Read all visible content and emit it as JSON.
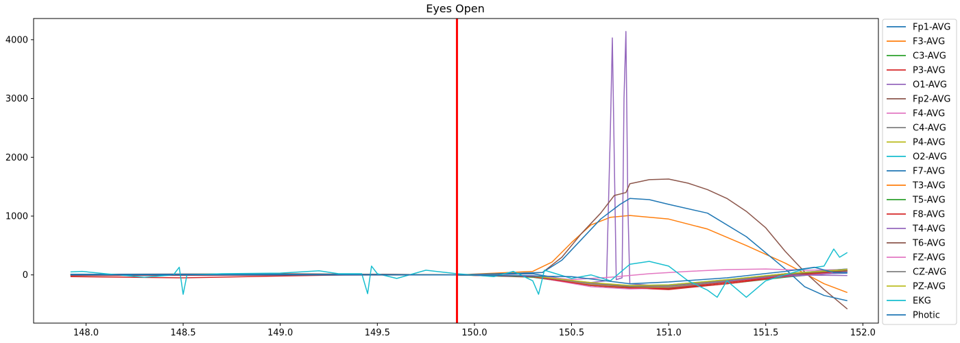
{
  "chart_data": {
    "type": "line",
    "title": "Eyes Open",
    "xlabel": "",
    "ylabel": "",
    "xlim": [
      147.73,
      152.08
    ],
    "ylim": [
      -820,
      4360
    ],
    "xticks": [
      148.0,
      148.5,
      149.0,
      149.5,
      150.0,
      150.5,
      151.0,
      151.5,
      152.0
    ],
    "xtick_labels": [
      "148.0",
      "148.5",
      "149.0",
      "149.5",
      "150.0",
      "150.5",
      "151.0",
      "151.5",
      "152.0"
    ],
    "yticks": [
      0,
      1000,
      2000,
      3000,
      4000
    ],
    "ytick_labels": [
      "0",
      "1000",
      "2000",
      "3000",
      "4000"
    ],
    "grid": false,
    "legend_position": "outside-right",
    "vline": {
      "x": 149.91,
      "color": "#ff0000"
    },
    "series": [
      {
        "name": "Fp1-AVG",
        "color": "#1f77b4",
        "points": [
          [
            147.92,
            10
          ],
          [
            148.5,
            -5
          ],
          [
            149.0,
            5
          ],
          [
            149.5,
            10
          ],
          [
            149.91,
            0
          ],
          [
            150.3,
            20
          ],
          [
            150.6,
            -150
          ],
          [
            150.8,
            -200
          ],
          [
            151.0,
            -220
          ],
          [
            151.3,
            -100
          ],
          [
            151.6,
            0
          ],
          [
            151.92,
            30
          ]
        ]
      },
      {
        "name": "F3-AVG",
        "color": "#ff7f0e",
        "points": [
          [
            147.92,
            0
          ],
          [
            149.0,
            10
          ],
          [
            149.91,
            0
          ],
          [
            150.3,
            60
          ],
          [
            150.4,
            220
          ],
          [
            150.5,
            550
          ],
          [
            150.6,
            850
          ],
          [
            150.7,
            980
          ],
          [
            150.8,
            1010
          ],
          [
            151.0,
            950
          ],
          [
            151.2,
            780
          ],
          [
            151.4,
            500
          ],
          [
            151.6,
            200
          ],
          [
            151.8,
            -150
          ],
          [
            151.92,
            -300
          ]
        ]
      },
      {
        "name": "C3-AVG",
        "color": "#2ca02c",
        "points": [
          [
            147.92,
            -10
          ],
          [
            149.0,
            0
          ],
          [
            149.91,
            0
          ],
          [
            150.3,
            -40
          ],
          [
            150.6,
            -180
          ],
          [
            150.8,
            -230
          ],
          [
            151.0,
            -240
          ],
          [
            151.3,
            -150
          ],
          [
            151.6,
            -40
          ],
          [
            151.92,
            60
          ]
        ]
      },
      {
        "name": "P3-AVG",
        "color": "#d62728",
        "points": [
          [
            147.92,
            -30
          ],
          [
            148.5,
            -50
          ],
          [
            149.0,
            -20
          ],
          [
            149.5,
            10
          ],
          [
            149.91,
            0
          ],
          [
            150.3,
            -30
          ],
          [
            150.6,
            -170
          ],
          [
            150.8,
            -220
          ],
          [
            151.0,
            -250
          ],
          [
            151.3,
            -150
          ],
          [
            151.6,
            -30
          ],
          [
            151.92,
            60
          ]
        ]
      },
      {
        "name": "O1-AVG",
        "color": "#9467bd",
        "points": [
          [
            147.92,
            0
          ],
          [
            149.91,
            0
          ],
          [
            150.3,
            -30
          ],
          [
            150.6,
            -130
          ],
          [
            150.68,
            -100
          ],
          [
            150.7,
            2500
          ],
          [
            150.71,
            4030
          ],
          [
            150.72,
            2000
          ],
          [
            150.73,
            -80
          ],
          [
            150.76,
            -50
          ],
          [
            150.77,
            3000
          ],
          [
            150.78,
            4140
          ],
          [
            150.79,
            1200
          ],
          [
            150.8,
            -150
          ],
          [
            151.0,
            -200
          ],
          [
            151.3,
            -120
          ],
          [
            151.6,
            -30
          ],
          [
            151.92,
            40
          ]
        ]
      },
      {
        "name": "Fp2-AVG",
        "color": "#8c564b",
        "points": [
          [
            147.92,
            10
          ],
          [
            149.0,
            20
          ],
          [
            149.91,
            0
          ],
          [
            150.35,
            40
          ],
          [
            150.45,
            300
          ],
          [
            150.55,
            700
          ],
          [
            150.65,
            1050
          ],
          [
            150.72,
            1350
          ],
          [
            150.78,
            1400
          ],
          [
            150.8,
            1550
          ],
          [
            150.9,
            1620
          ],
          [
            151.0,
            1630
          ],
          [
            151.1,
            1560
          ],
          [
            151.2,
            1450
          ],
          [
            151.3,
            1300
          ],
          [
            151.4,
            1080
          ],
          [
            151.5,
            800
          ],
          [
            151.6,
            400
          ],
          [
            151.7,
            50
          ],
          [
            151.8,
            -250
          ],
          [
            151.92,
            -580
          ]
        ]
      },
      {
        "name": "F4-AVG",
        "color": "#e377c2",
        "points": [
          [
            147.92,
            0
          ],
          [
            149.91,
            0
          ],
          [
            150.3,
            -30
          ],
          [
            150.6,
            -200
          ],
          [
            150.8,
            -240
          ],
          [
            151.0,
            -220
          ],
          [
            151.3,
            -120
          ],
          [
            151.6,
            -20
          ],
          [
            151.92,
            60
          ]
        ]
      },
      {
        "name": "C4-AVG",
        "color": "#7f7f7f",
        "points": [
          [
            147.92,
            0
          ],
          [
            149.91,
            0
          ],
          [
            150.3,
            -20
          ],
          [
            150.6,
            -170
          ],
          [
            150.8,
            -220
          ],
          [
            151.0,
            -210
          ],
          [
            151.3,
            -110
          ],
          [
            151.6,
            0
          ],
          [
            151.92,
            80
          ]
        ]
      },
      {
        "name": "P4-AVG",
        "color": "#bcbd22",
        "points": [
          [
            147.92,
            5
          ],
          [
            149.91,
            0
          ],
          [
            150.3,
            -20
          ],
          [
            150.6,
            -160
          ],
          [
            150.8,
            -210
          ],
          [
            151.0,
            -200
          ],
          [
            151.3,
            -100
          ],
          [
            151.6,
            10
          ],
          [
            151.92,
            90
          ]
        ]
      },
      {
        "name": "O2-AVG",
        "color": "#17becf",
        "points": [
          [
            147.92,
            0
          ],
          [
            149.91,
            0
          ],
          [
            150.3,
            -20
          ],
          [
            150.6,
            -140
          ],
          [
            150.8,
            -180
          ],
          [
            151.0,
            -170
          ],
          [
            151.3,
            -80
          ],
          [
            151.6,
            20
          ],
          [
            151.92,
            100
          ]
        ]
      },
      {
        "name": "F7-AVG",
        "color": "#1f77b4",
        "points": [
          [
            147.92,
            10
          ],
          [
            149.0,
            10
          ],
          [
            149.91,
            0
          ],
          [
            150.35,
            40
          ],
          [
            150.45,
            250
          ],
          [
            150.55,
            600
          ],
          [
            150.65,
            950
          ],
          [
            150.75,
            1200
          ],
          [
            150.8,
            1300
          ],
          [
            150.9,
            1280
          ],
          [
            151.0,
            1200
          ],
          [
            151.2,
            1050
          ],
          [
            151.4,
            650
          ],
          [
            151.6,
            100
          ],
          [
            151.7,
            -200
          ],
          [
            151.8,
            -350
          ],
          [
            151.92,
            -440
          ]
        ]
      },
      {
        "name": "T3-AVG",
        "color": "#ff7f0e",
        "points": [
          [
            147.92,
            0
          ],
          [
            149.91,
            0
          ],
          [
            150.3,
            -20
          ],
          [
            150.6,
            -150
          ],
          [
            150.8,
            -190
          ],
          [
            151.0,
            -180
          ],
          [
            151.3,
            -90
          ],
          [
            151.6,
            20
          ],
          [
            151.92,
            90
          ]
        ]
      },
      {
        "name": "T5-AVG",
        "color": "#2ca02c",
        "points": [
          [
            147.92,
            0
          ],
          [
            149.91,
            0
          ],
          [
            150.3,
            -20
          ],
          [
            150.6,
            -140
          ],
          [
            150.8,
            -200
          ],
          [
            151.0,
            -190
          ],
          [
            151.3,
            -100
          ],
          [
            151.6,
            10
          ],
          [
            151.92,
            70
          ]
        ]
      },
      {
        "name": "F8-AVG",
        "color": "#d62728",
        "points": [
          [
            147.92,
            -10
          ],
          [
            149.91,
            0
          ],
          [
            150.3,
            -30
          ],
          [
            150.6,
            -180
          ],
          [
            150.8,
            -220
          ],
          [
            151.0,
            -230
          ],
          [
            151.3,
            -130
          ],
          [
            151.6,
            -20
          ],
          [
            151.92,
            70
          ]
        ]
      },
      {
        "name": "T4-AVG",
        "color": "#9467bd",
        "points": [
          [
            147.92,
            0
          ],
          [
            149.91,
            0
          ],
          [
            150.3,
            -20
          ],
          [
            150.6,
            -150
          ],
          [
            150.8,
            -200
          ],
          [
            151.0,
            -190
          ],
          [
            151.3,
            -100
          ],
          [
            151.6,
            0
          ],
          [
            151.92,
            -10
          ]
        ]
      },
      {
        "name": "T6-AVG",
        "color": "#8c564b",
        "points": [
          [
            147.92,
            0
          ],
          [
            149.91,
            0
          ],
          [
            150.3,
            -20
          ],
          [
            150.6,
            -140
          ],
          [
            150.8,
            -200
          ],
          [
            151.0,
            -180
          ],
          [
            151.3,
            -90
          ],
          [
            151.6,
            10
          ],
          [
            151.92,
            70
          ]
        ]
      },
      {
        "name": "FZ-AVG",
        "color": "#e377c2",
        "points": [
          [
            147.92,
            0
          ],
          [
            149.91,
            0
          ],
          [
            150.3,
            -10
          ],
          [
            150.5,
            -80
          ],
          [
            150.7,
            -40
          ],
          [
            150.9,
            20
          ],
          [
            151.1,
            60
          ],
          [
            151.3,
            90
          ],
          [
            151.5,
            100
          ],
          [
            151.7,
            80
          ],
          [
            151.92,
            90
          ]
        ]
      },
      {
        "name": "CZ-AVG",
        "color": "#7f7f7f",
        "points": [
          [
            147.92,
            0
          ],
          [
            149.91,
            0
          ],
          [
            150.3,
            -20
          ],
          [
            150.6,
            -140
          ],
          [
            150.8,
            -190
          ],
          [
            151.0,
            -180
          ],
          [
            151.3,
            -90
          ],
          [
            151.6,
            20
          ],
          [
            151.92,
            100
          ]
        ]
      },
      {
        "name": "PZ-AVG",
        "color": "#bcbd22",
        "points": [
          [
            147.92,
            0
          ],
          [
            149.91,
            0
          ],
          [
            150.3,
            -20
          ],
          [
            150.6,
            -130
          ],
          [
            150.8,
            -180
          ],
          [
            151.0,
            -170
          ],
          [
            151.3,
            -80
          ],
          [
            151.6,
            20
          ],
          [
            151.92,
            90
          ]
        ]
      },
      {
        "name": "EKG",
        "color": "#17becf",
        "points": [
          [
            147.92,
            50
          ],
          [
            147.98,
            60
          ],
          [
            148.1,
            20
          ],
          [
            148.3,
            -40
          ],
          [
            148.45,
            0
          ],
          [
            148.48,
            130
          ],
          [
            148.5,
            -330
          ],
          [
            148.52,
            0
          ],
          [
            148.7,
            20
          ],
          [
            149.0,
            30
          ],
          [
            149.2,
            70
          ],
          [
            149.3,
            20
          ],
          [
            149.42,
            20
          ],
          [
            149.45,
            -320
          ],
          [
            149.47,
            150
          ],
          [
            149.5,
            20
          ],
          [
            149.6,
            -60
          ],
          [
            149.75,
            80
          ],
          [
            149.91,
            20
          ],
          [
            150.1,
            -30
          ],
          [
            150.2,
            60
          ],
          [
            150.3,
            -100
          ],
          [
            150.33,
            -330
          ],
          [
            150.36,
            80
          ],
          [
            150.5,
            -60
          ],
          [
            150.6,
            0
          ],
          [
            150.7,
            -100
          ],
          [
            150.8,
            180
          ],
          [
            150.9,
            230
          ],
          [
            151.0,
            150
          ],
          [
            151.1,
            -100
          ],
          [
            151.2,
            -260
          ],
          [
            151.25,
            -380
          ],
          [
            151.3,
            -100
          ],
          [
            151.4,
            -380
          ],
          [
            151.5,
            -100
          ],
          [
            151.6,
            0
          ],
          [
            151.7,
            100
          ],
          [
            151.8,
            150
          ],
          [
            151.85,
            440
          ],
          [
            151.88,
            300
          ],
          [
            151.92,
            380
          ]
        ]
      },
      {
        "name": "Photic",
        "color": "#1f77b4",
        "points": [
          [
            147.92,
            0
          ],
          [
            149.91,
            0
          ],
          [
            150.5,
            -30
          ],
          [
            150.8,
            -150
          ],
          [
            151.0,
            -120
          ],
          [
            151.3,
            -50
          ],
          [
            151.6,
            60
          ],
          [
            151.75,
            130
          ],
          [
            151.85,
            40
          ],
          [
            151.92,
            40
          ]
        ]
      }
    ]
  }
}
